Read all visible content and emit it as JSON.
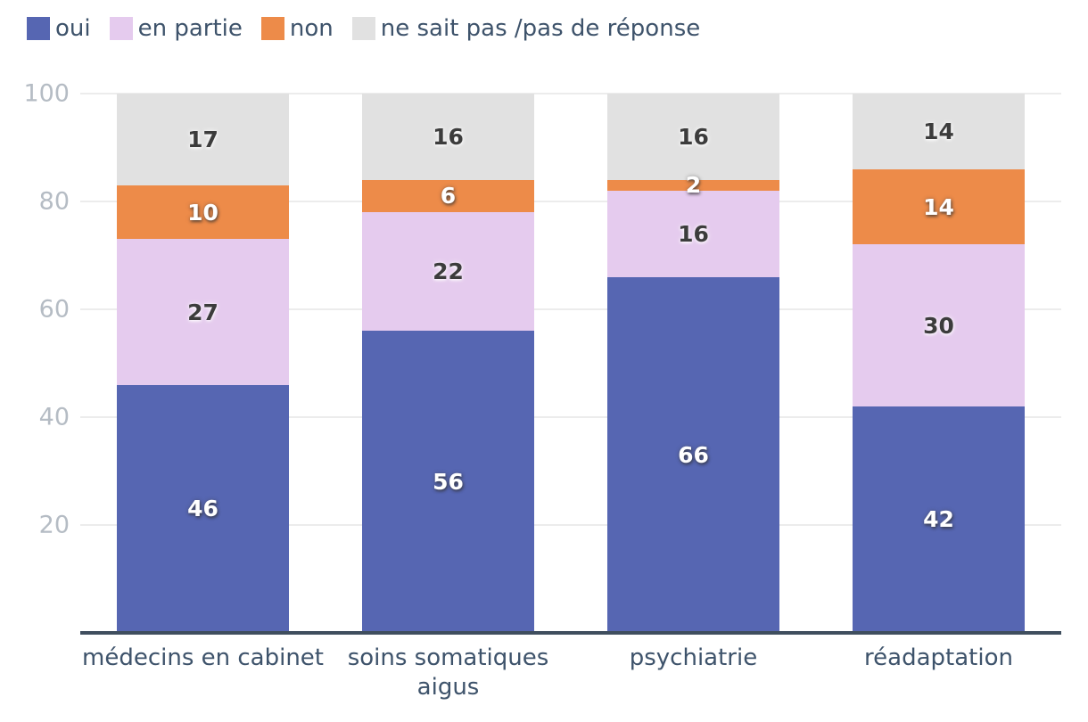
{
  "chart_data": {
    "type": "bar",
    "stacked": true,
    "orientation": "vertical",
    "title": "",
    "xlabel": "",
    "ylabel": "",
    "ylim": [
      0,
      100
    ],
    "yticks": [
      20,
      40,
      60,
      80,
      100
    ],
    "grid": true,
    "legend_position": "top-left",
    "categories": [
      "médecins en cabinet",
      "soins somatiques aigus",
      "psychiatrie",
      "réadaptation"
    ],
    "series": [
      {
        "name": "oui",
        "color": "#5666b2",
        "label_style": "light",
        "values": [
          46,
          56,
          66,
          42
        ]
      },
      {
        "name": "en partie",
        "color": "#e5cbee",
        "label_style": "dark",
        "values": [
          27,
          22,
          16,
          30
        ]
      },
      {
        "name": "non",
        "color": "#ed8b49",
        "label_style": "light",
        "values": [
          10,
          6,
          2,
          14
        ]
      },
      {
        "name": "ne sait pas /pas de réponse",
        "color": "#e1e1e1",
        "label_style": "dark",
        "values": [
          17,
          16,
          16,
          14
        ]
      }
    ],
    "palette": {
      "background": "#ffffff",
      "gridline": "#ececec",
      "axis_line": "#3f4e5e",
      "tick_text": "#b5bcc4",
      "label_text": "#3e536b"
    }
  }
}
